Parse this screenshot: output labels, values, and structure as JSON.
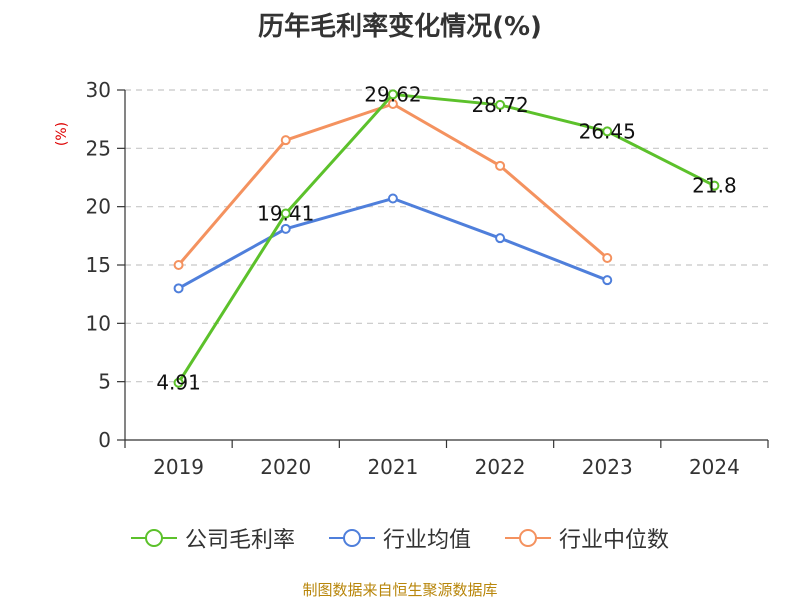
{
  "chart_data": {
    "type": "line",
    "title": "历年毛利率变化情况(%)",
    "ylabel": "(%)",
    "xlabel": "",
    "categories": [
      "2019",
      "2020",
      "2021",
      "2022",
      "2023",
      "2024"
    ],
    "ylim": [
      0,
      30
    ],
    "yticks": [
      0,
      5,
      10,
      15,
      20,
      25,
      30
    ],
    "grid": "horizontal-dashed",
    "legend_position": "bottom",
    "series": [
      {
        "name": "公司毛利率",
        "color": "#5cc12b",
        "values": [
          4.91,
          19.41,
          29.62,
          28.72,
          26.45,
          21.8
        ],
        "labels": [
          "4.91",
          "19.41",
          "29.62",
          "28.72",
          "26.45",
          "21.8"
        ]
      },
      {
        "name": "行业均值",
        "color": "#4f7fdb",
        "values": [
          13.0,
          18.1,
          20.7,
          17.3,
          13.7,
          null
        ]
      },
      {
        "name": "行业中位数",
        "color": "#f4925f",
        "values": [
          15.0,
          25.7,
          28.8,
          23.5,
          15.6,
          null
        ]
      }
    ],
    "source": "制图数据来自恒生聚源数据库"
  }
}
